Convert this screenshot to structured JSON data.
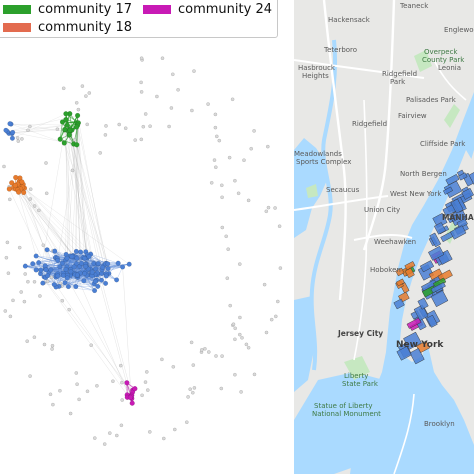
{
  "legend": {
    "items": [
      {
        "label": "community 17",
        "color": "#2ca02c"
      },
      {
        "label": "community 24",
        "color": "#c81ab5"
      },
      {
        "label": "community 18",
        "color": "#e36b4f"
      }
    ]
  },
  "colors": {
    "community_blue": "#4a7fd4",
    "community_green": "#2ca02c",
    "community_orange": "#e87b2c",
    "community_magenta": "#c81ab5",
    "isolated_node": "#d9d9d9",
    "edge": "#a8a8a8",
    "map_land": "#e8e8e6",
    "map_water": "#aadaff",
    "map_highway": "#ffffff",
    "map_park": "#c6e8c1"
  },
  "map": {
    "labels": [
      {
        "id": "teaneck",
        "text": "Teaneck"
      },
      {
        "id": "hackensack",
        "text": "Hackensack"
      },
      {
        "id": "englewood",
        "text": "Englewood"
      },
      {
        "id": "teterboro",
        "text": "Teterboro"
      },
      {
        "id": "hasbrouck",
        "text": "Hasbrouck"
      },
      {
        "id": "heights",
        "text": "Heights"
      },
      {
        "id": "overpeck",
        "text": "Overpeck"
      },
      {
        "id": "county-park",
        "text": "County Park"
      },
      {
        "id": "leonia",
        "text": "Leonia"
      },
      {
        "id": "ridgefield-park",
        "text": "Ridgefield"
      },
      {
        "id": "park",
        "text": "Park"
      },
      {
        "id": "palisades-park",
        "text": "Palisades Park"
      },
      {
        "id": "fairview",
        "text": "Fairview"
      },
      {
        "id": "ridgefield",
        "text": "Ridgefield"
      },
      {
        "id": "cliffside-park",
        "text": "Cliffside Park"
      },
      {
        "id": "meadowlands",
        "text": "Meadowlands"
      },
      {
        "id": "sports-complex",
        "text": "Sports Complex"
      },
      {
        "id": "north-bergen",
        "text": "North Bergen"
      },
      {
        "id": "secaucus",
        "text": "Secaucus"
      },
      {
        "id": "union-city",
        "text": "Union City"
      },
      {
        "id": "west-new-york",
        "text": "West New York"
      },
      {
        "id": "manhattan",
        "text": "MANHA"
      },
      {
        "id": "weehawken",
        "text": "Weehawken"
      },
      {
        "id": "hoboken",
        "text": "Hoboken"
      },
      {
        "id": "jersey-city",
        "text": "Jersey City"
      },
      {
        "id": "new-york",
        "text": "New York"
      },
      {
        "id": "liberty-state-park-1",
        "text": "Liberty"
      },
      {
        "id": "liberty-state-park-2",
        "text": "State Park"
      },
      {
        "id": "statue-1",
        "text": "Statue of Liberty"
      },
      {
        "id": "statue-2",
        "text": "National Monument"
      },
      {
        "id": "brooklyn",
        "text": "Brooklyn"
      }
    ]
  }
}
